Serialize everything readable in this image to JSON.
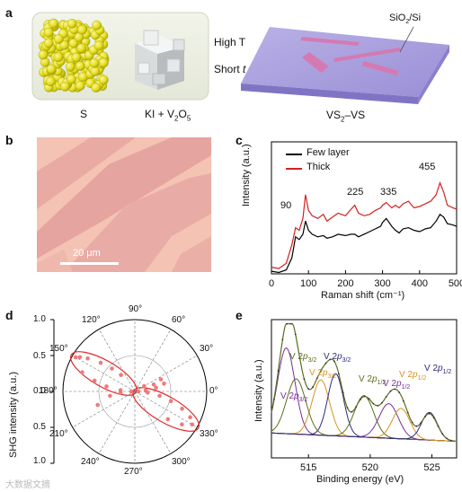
{
  "panels": {
    "a": {
      "label": "a",
      "high_t": "High T",
      "short_t": "Short ",
      "short_t_italic": "t",
      "precursor_s": "S",
      "precursor_ki": "KI + V",
      "precursor_ki_sub1": "2",
      "precursor_ki_o": "O",
      "precursor_ki_sub2": "5",
      "substrate": "SiO",
      "substrate_sub": "2",
      "substrate_tail": "/Si",
      "product": "VS",
      "product_sub": "2",
      "product_tail": "–VS"
    },
    "b": {
      "label": "b",
      "scale_bar": "20 μm"
    },
    "c": {
      "label": "c"
    },
    "d": {
      "label": "d"
    },
    "e": {
      "label": "e"
    }
  },
  "watermark": "大数据文摘",
  "chart_data": [
    {
      "id": "raman",
      "type": "line",
      "xlabel": "Raman shift (cm⁻¹)",
      "ylabel": "Intensity (a.u.)",
      "xlim": [
        0,
        500
      ],
      "xticks": [
        0,
        100,
        200,
        300,
        400,
        500
      ],
      "legend": [
        "Few layer",
        "Thick"
      ],
      "legend_position": "top-left",
      "series_colors": [
        "#000000",
        "#d42020"
      ],
      "annotations": [
        "90",
        "225",
        "335",
        "455"
      ],
      "series": [
        {
          "name": "Few layer",
          "x": [
            0,
            20,
            40,
            55,
            65,
            75,
            85,
            92,
            100,
            110,
            125,
            140,
            150,
            165,
            180,
            200,
            215,
            225,
            235,
            250,
            265,
            280,
            295,
            300,
            310,
            325,
            335,
            345,
            355,
            370,
            385,
            400,
            415,
            430,
            445,
            455,
            465,
            475,
            490,
            500
          ],
          "y": [
            0.02,
            0.01,
            0.03,
            0.12,
            0.28,
            0.26,
            0.3,
            0.4,
            0.33,
            0.3,
            0.28,
            0.29,
            0.27,
            0.28,
            0.3,
            0.29,
            0.3,
            0.3,
            0.28,
            0.3,
            0.32,
            0.34,
            0.36,
            0.39,
            0.42,
            0.36,
            0.33,
            0.31,
            0.34,
            0.35,
            0.33,
            0.32,
            0.34,
            0.35,
            0.4,
            0.45,
            0.43,
            0.38,
            0.37,
            0.36
          ]
        },
        {
          "name": "Thick",
          "x": [
            0,
            20,
            40,
            55,
            65,
            75,
            85,
            92,
            100,
            110,
            125,
            140,
            150,
            165,
            180,
            200,
            215,
            225,
            235,
            250,
            265,
            280,
            295,
            300,
            310,
            325,
            335,
            345,
            355,
            370,
            385,
            400,
            415,
            430,
            445,
            455,
            465,
            475,
            490,
            500
          ],
          "y": [
            0.05,
            0.04,
            0.08,
            0.22,
            0.35,
            0.33,
            0.42,
            0.6,
            0.48,
            0.44,
            0.42,
            0.45,
            0.4,
            0.43,
            0.46,
            0.44,
            0.49,
            0.52,
            0.46,
            0.44,
            0.45,
            0.48,
            0.5,
            0.52,
            0.54,
            0.5,
            0.52,
            0.5,
            0.53,
            0.55,
            0.5,
            0.51,
            0.53,
            0.55,
            0.6,
            0.69,
            0.62,
            0.52,
            0.5,
            0.49
          ]
        }
      ]
    },
    {
      "id": "shg",
      "type": "scatter",
      "polar": true,
      "ylabel": "SHG intensity (a.u.)",
      "radial_ticks": [
        "1.0",
        "0.5",
        "0.0",
        "0.5",
        "1.0"
      ],
      "angle_labels": [
        "90°",
        "60°",
        "30°",
        "0°",
        "330°",
        "300°",
        "270°",
        "240°",
        "210°",
        "180°",
        "150°",
        "120°"
      ],
      "series_colors": [
        "#e02a2a"
      ],
      "series": [
        {
          "theta_deg": [
            150,
            148,
            145,
            140,
            135,
            130,
            160,
            165,
            170,
            175,
            180,
            185,
            190,
            200,
            320,
            325,
            330,
            335,
            340,
            345,
            350,
            355,
            0,
            5,
            10,
            15,
            20,
            25,
            30
          ],
          "r": [
            0.95,
            0.9,
            0.8,
            0.62,
            0.45,
            0.3,
            0.78,
            0.58,
            0.4,
            0.2,
            0.05,
            0.2,
            0.35,
            0.55,
            0.6,
            0.8,
            0.92,
            0.85,
            0.7,
            0.52,
            0.35,
            0.18,
            0.05,
            0.15,
            0.3,
            0.42,
            0.28,
            0.4,
            0.15
          ]
        }
      ]
    },
    {
      "id": "xps",
      "type": "line",
      "xlabel": "Binding energy (eV)",
      "ylabel": "Intensity (a.u.)",
      "xlim": [
        512,
        527
      ],
      "xticks": [
        515,
        520,
        525
      ],
      "annotations": [
        "V 2p3/2",
        "V 2p1/2",
        "V 2p3/2",
        "V 2p3/2",
        "V 2p1/2",
        "V 2p1/2",
        "V 2p3/2",
        "V 2p1/2"
      ],
      "series_colors": [
        "#5a6e1e",
        "#2e2b7a",
        "#d99320",
        "#7a2f95",
        "#777777"
      ]
    }
  ]
}
